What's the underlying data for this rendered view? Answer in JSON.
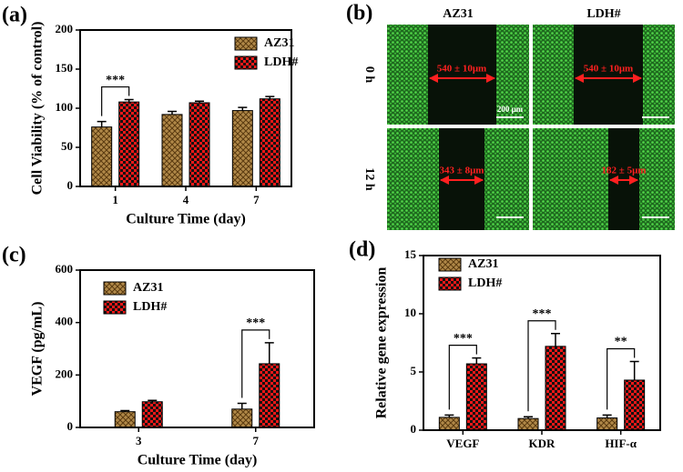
{
  "chart_data": [
    {
      "type": "bar",
      "panel_label": "(a)",
      "ylabel": "Cell Viability (% of control)",
      "xlabel": "Culture Time (day)",
      "categories": [
        "1",
        "4",
        "7"
      ],
      "series": [
        {
          "name": "AZ31",
          "color": "#b08848",
          "values": [
            76,
            92,
            97
          ],
          "errors": [
            7,
            4,
            4
          ]
        },
        {
          "name": "LDH#",
          "color": "#f01818",
          "values": [
            108,
            107,
            112
          ],
          "errors": [
            3,
            2,
            3
          ]
        }
      ],
      "annotations": [
        "***",
        null,
        null
      ],
      "ylim": [
        0,
        200
      ],
      "yticks": [
        0,
        50,
        100,
        150,
        200
      ]
    },
    {
      "type": "bar",
      "panel_label": "(c)",
      "ylabel": "VEGF (pg/mL)",
      "xlabel": "Culture Time (day)",
      "categories": [
        "3",
        "7"
      ],
      "series": [
        {
          "name": "AZ31",
          "color": "#b08848",
          "values": [
            60,
            70
          ],
          "errors": [
            4,
            22
          ]
        },
        {
          "name": "LDH#",
          "color": "#f01818",
          "values": [
            98,
            243
          ],
          "errors": [
            5,
            80
          ]
        }
      ],
      "annotations": [
        null,
        "***"
      ],
      "ylim": [
        0,
        600
      ],
      "yticks": [
        0,
        200,
        400,
        600
      ]
    },
    {
      "type": "bar",
      "panel_label": "(d)",
      "ylabel": "Relative gene expression",
      "categories": [
        "VEGF",
        "KDR",
        "HIF-α"
      ],
      "series": [
        {
          "name": "AZ31",
          "color": "#b08848",
          "values": [
            1.1,
            1.0,
            1.05
          ],
          "errors": [
            0.2,
            0.15,
            0.25
          ]
        },
        {
          "name": "LDH#",
          "color": "#f01818",
          "values": [
            5.7,
            7.2,
            4.3
          ],
          "errors": [
            0.5,
            1.1,
            1.6
          ]
        }
      ],
      "annotations": [
        "***",
        "***",
        "**"
      ],
      "ylim": [
        0,
        15
      ],
      "yticks": [
        0,
        5,
        10,
        15
      ]
    }
  ],
  "image_panel": {
    "panel_label": "(b)",
    "columns": [
      "AZ31",
      "LDH#"
    ],
    "rows": [
      "0 h",
      "12 h"
    ],
    "measurements": [
      "540 ± 10μm",
      "540 ± 10μm",
      "343 ± 8μm",
      "182 ± 5μm"
    ],
    "scale_bar": "200 μm"
  }
}
